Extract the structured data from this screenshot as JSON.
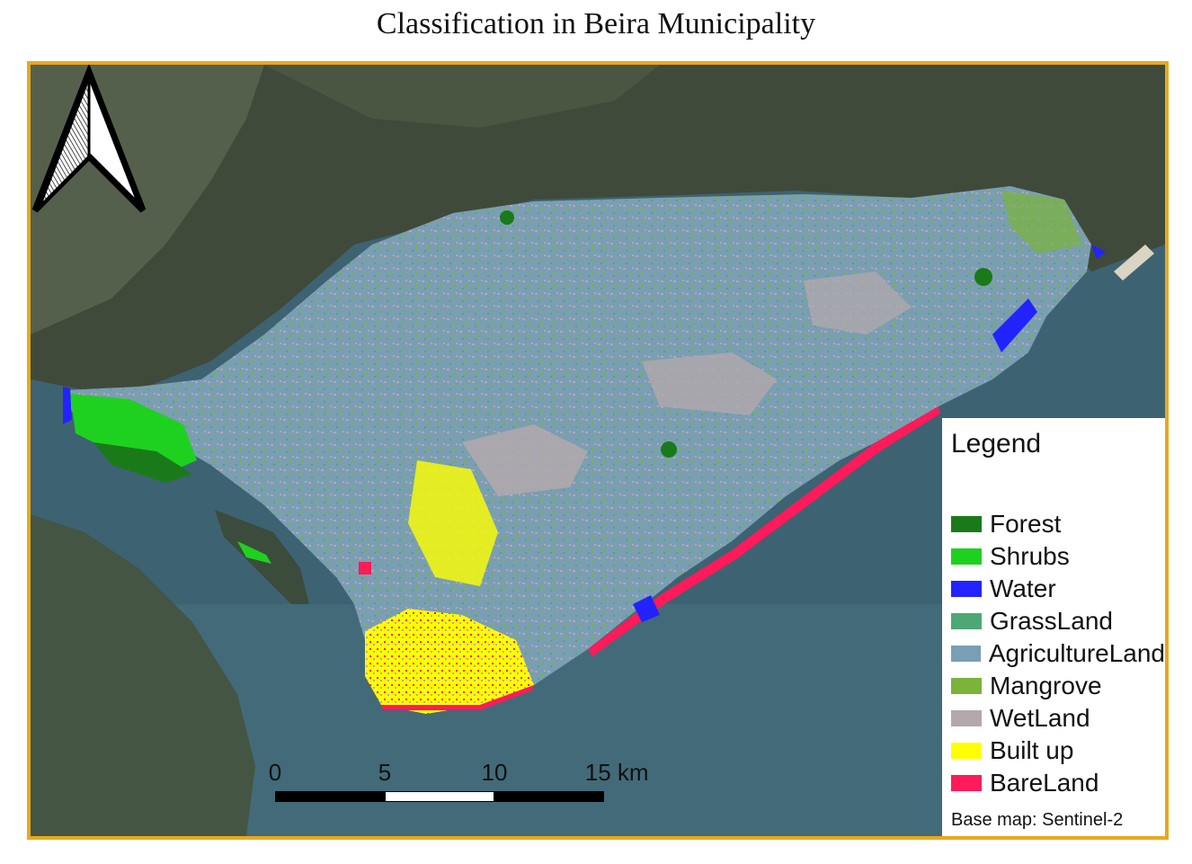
{
  "title": "Classification in Beira Municipality",
  "legend": {
    "title": "Legend",
    "items": [
      {
        "label": "Forest",
        "color": "#1a7a1a"
      },
      {
        "label": "Shrubs",
        "color": "#1fd11f"
      },
      {
        "label": "Water",
        "color": "#2323ff"
      },
      {
        "label": "GrassLand",
        "color": "#4da874"
      },
      {
        "label": "AgricultureLand",
        "color": "#7a9eb4"
      },
      {
        "label": "Mangrove",
        "color": "#7cb33a"
      },
      {
        "label": "WetLand",
        "color": "#b3a8ad"
      },
      {
        "label": "Built up",
        "color": "#ffff00"
      },
      {
        "label": "BareLand",
        "color": "#ff1a5a"
      }
    ],
    "credit": "Base map: Sentinel-2"
  },
  "scale_bar": {
    "labels": [
      "0",
      "5",
      "10",
      "15 km"
    ]
  },
  "colors": {
    "frame": "#e8a91c",
    "sea": "#3d6272",
    "land_dark": "#3f4a3a"
  },
  "icons": [
    "north-arrow-icon"
  ]
}
